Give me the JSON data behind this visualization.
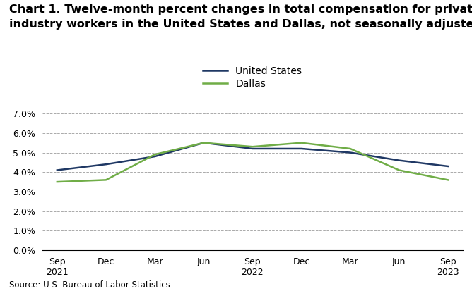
{
  "title_line1": "Chart 1. Twelve-month percent changes in total compensation for private",
  "title_line2": "industry workers in the United States and Dallas, not seasonally adjusted",
  "x_labels": [
    "Sep\n2021",
    "Dec",
    "Mar",
    "Jun",
    "Sep\n2022",
    "Dec",
    "Mar",
    "Jun",
    "Sep\n2023"
  ],
  "us_values": [
    4.1,
    4.4,
    4.8,
    5.5,
    5.2,
    5.2,
    5.0,
    4.6,
    4.3
  ],
  "dallas_values": [
    3.5,
    3.6,
    4.9,
    5.5,
    5.3,
    5.5,
    5.2,
    4.1,
    3.6
  ],
  "us_color": "#1f3864",
  "dallas_color": "#70ad47",
  "us_label": "United States",
  "dallas_label": "Dallas",
  "ylim": [
    0.0,
    7.0
  ],
  "yticks": [
    0.0,
    1.0,
    2.0,
    3.0,
    4.0,
    5.0,
    6.0,
    7.0
  ],
  "source": "Source: U.S. Bureau of Labor Statistics.",
  "background_color": "#ffffff",
  "grid_color": "#aaaaaa",
  "title_fontsize": 11.5,
  "legend_fontsize": 10,
  "tick_fontsize": 9,
  "source_fontsize": 8.5
}
